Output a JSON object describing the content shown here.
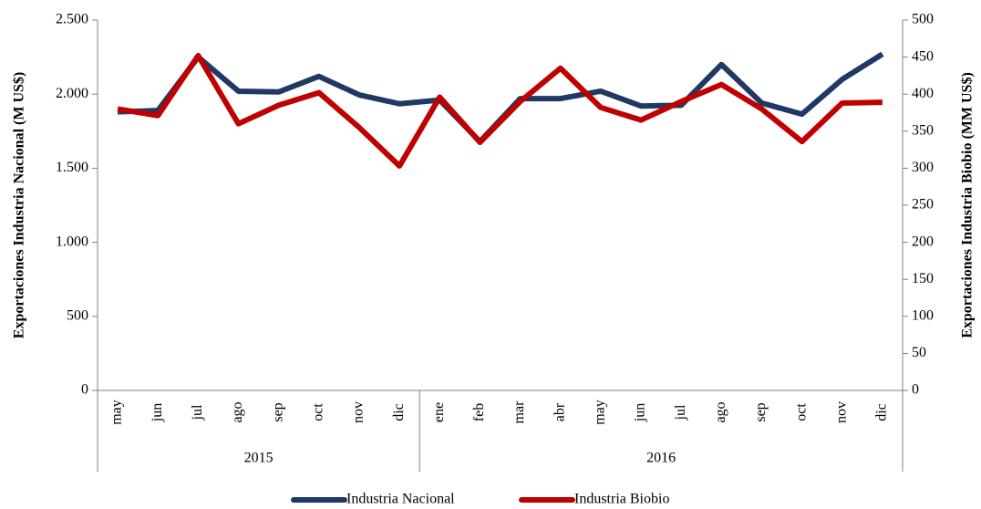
{
  "chart_data": {
    "type": "line",
    "groups": [
      {
        "label": "2015",
        "categories": [
          "may",
          "jun",
          "jul",
          "ago",
          "sep",
          "oct",
          "nov",
          "dic"
        ]
      },
      {
        "label": "2016",
        "categories": [
          "ene",
          "feb",
          "mar",
          "abr",
          "may",
          "jun",
          "jul",
          "ago",
          "sep",
          "oct",
          "nov",
          "dic"
        ]
      }
    ],
    "ylabel": "Exportaciones Industria Nacional (M US$)",
    "y2label": "Exportaciones Industria Biobio (MM US$)",
    "ylim": [
      0,
      2500
    ],
    "yticks": [
      0,
      500,
      {
        "value": 1000,
        "label": "1.000"
      },
      {
        "value": 1500,
        "label": "1.500"
      },
      {
        "value": 2000,
        "label": "2.000"
      },
      {
        "value": 2500,
        "label": "2.500"
      }
    ],
    "y2lim": [
      0,
      500
    ],
    "y2ticks": [
      0,
      50,
      100,
      150,
      200,
      250,
      300,
      350,
      400,
      450,
      500
    ],
    "legend": "bottom",
    "series": [
      {
        "name": "Industria Nacional",
        "color": "#203864",
        "axis": "y",
        "values": [
          1880,
          1890,
          2250,
          2020,
          2015,
          2120,
          1995,
          1935,
          1960,
          1680,
          1970,
          1970,
          2020,
          1920,
          1925,
          2200,
          1940,
          1865,
          2100,
          2270
        ]
      },
      {
        "name": "Industria Biobio",
        "color": "#c00000",
        "axis": "y2",
        "values": [
          380,
          371,
          452,
          360,
          385,
          402,
          355,
          303,
          396,
          335,
          390,
          435,
          382,
          365,
          390,
          413,
          380,
          336,
          388,
          389
        ]
      }
    ]
  }
}
